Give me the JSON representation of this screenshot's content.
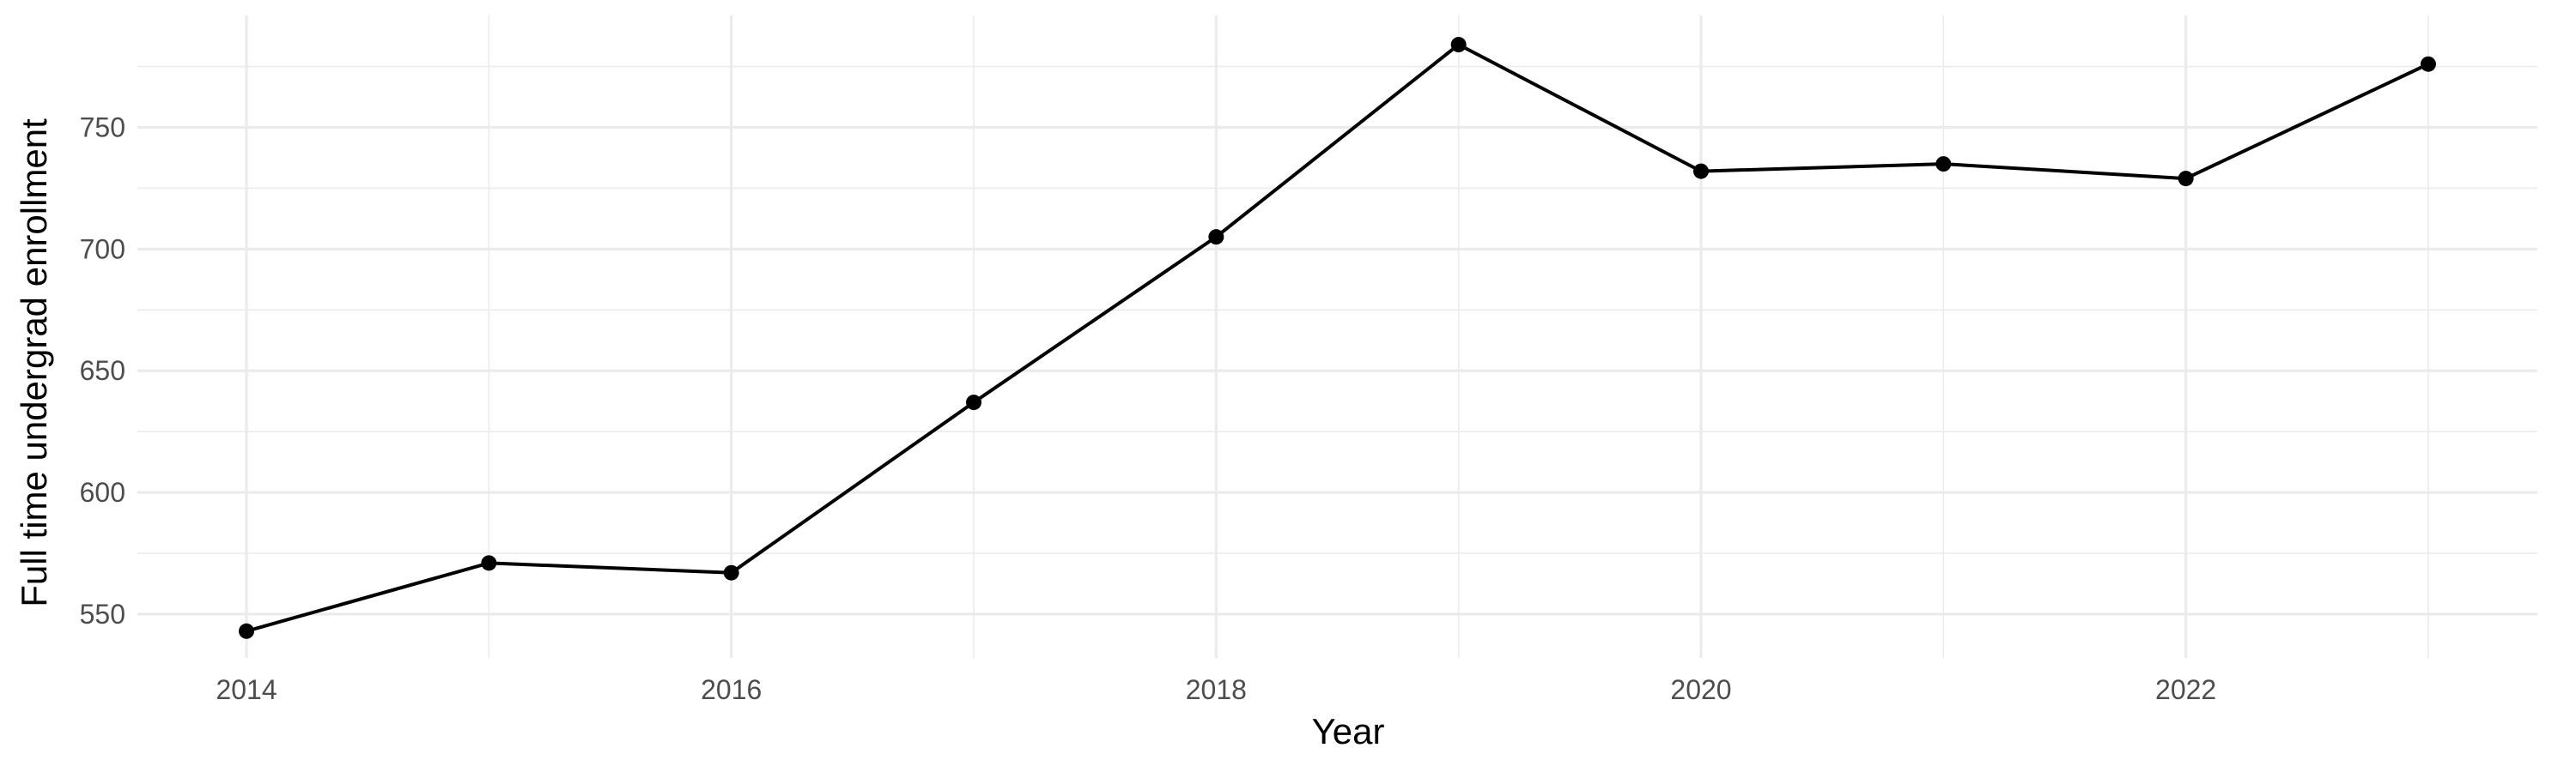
{
  "chart_data": {
    "type": "line",
    "x": [
      2014,
      2015,
      2016,
      2017,
      2018,
      2019,
      2020,
      2021,
      2022,
      2023
    ],
    "series": [
      {
        "values": [
          543,
          571,
          567,
          637,
          705,
          784,
          732,
          735,
          729,
          776
        ]
      }
    ],
    "xlabel": "Year",
    "ylabel": "Full time undergrad enrollment",
    "xlim": [
      2013.55,
      2023.45
    ],
    "ylim": [
      532,
      796
    ],
    "x_ticks": [
      2014,
      2016,
      2018,
      2020,
      2022
    ],
    "x_tick_labels": [
      "2014",
      "2016",
      "2018",
      "2020",
      "2022"
    ],
    "x_minor_ticks": [
      2015,
      2017,
      2019,
      2021,
      2023
    ],
    "y_ticks": [
      550,
      600,
      650,
      700,
      750
    ],
    "y_tick_labels": [
      "550",
      "600",
      "650",
      "700",
      "750"
    ],
    "y_minor_ticks": [
      575,
      625,
      675,
      725,
      775
    ],
    "grid": true,
    "legend": "none",
    "line_color": "#000000",
    "grid_color": "#ebebeb"
  }
}
